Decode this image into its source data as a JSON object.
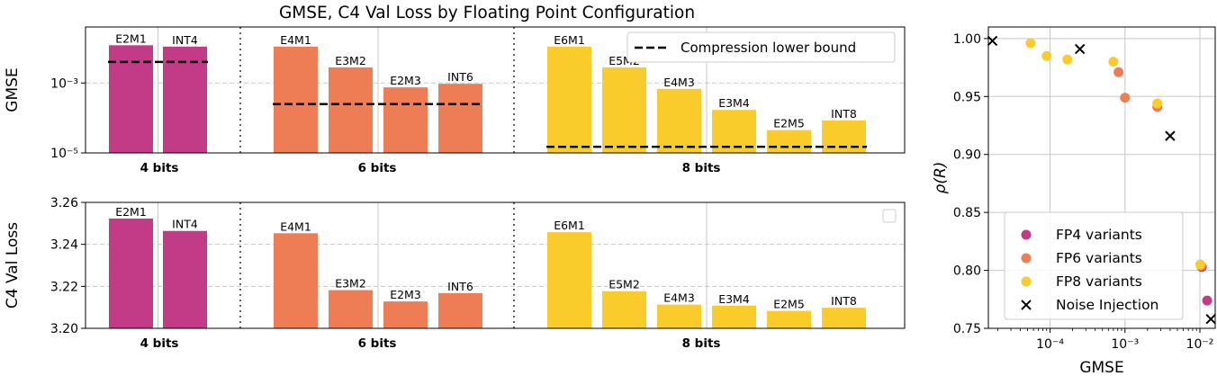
{
  "figure": {
    "title": "GMSE, C4 Val Loss by Floating Point Configuration"
  },
  "colors": {
    "fp4": "#c13b87",
    "fp6": "#ee7d55",
    "fp8": "#f9cb2b",
    "grid": "#c8c8c8",
    "dotted": "#666666"
  },
  "chart_data": [
    {
      "type": "bar",
      "panel": "gmse",
      "ylabel": "GMSE",
      "yscale": "log",
      "ylim": [
        1e-05,
        0.04
      ],
      "y_ticks": [
        {
          "value": 1e-05,
          "label": "10⁻⁵"
        },
        {
          "value": 0.001,
          "label": "10⁻³"
        }
      ],
      "groups": [
        {
          "label": "4 bits",
          "color_key": "fp4",
          "bound": 0.004,
          "bars": [
            {
              "name": "E2M1",
              "value": 0.012
            },
            {
              "name": "INT4",
              "value": 0.011
            }
          ]
        },
        {
          "label": "6 bits",
          "color_key": "fp6",
          "bound": 0.00025,
          "bars": [
            {
              "name": "E4M1",
              "value": 0.011
            },
            {
              "name": "E3M2",
              "value": 0.0028
            },
            {
              "name": "E2M3",
              "value": 0.00075
            },
            {
              "name": "INT6",
              "value": 0.00095
            }
          ]
        },
        {
          "label": "8 bits",
          "color_key": "fp8",
          "bound": 1.5e-05,
          "bars": [
            {
              "name": "E6M1",
              "value": 0.011
            },
            {
              "name": "E5M2",
              "value": 0.0028
            },
            {
              "name": "E4M3",
              "value": 0.00068
            },
            {
              "name": "E3M4",
              "value": 0.00017
            },
            {
              "name": "E2M5",
              "value": 4.5e-05
            },
            {
              "name": "INT8",
              "value": 8.5e-05
            }
          ]
        }
      ],
      "legend": {
        "label": "Compression lower bound",
        "position": "top-right"
      }
    },
    {
      "type": "bar",
      "panel": "loss",
      "ylabel": "C4 Val Loss",
      "ylim": [
        3.2,
        3.26
      ],
      "y_ticks": [
        {
          "value": 3.2,
          "label": "3.20"
        },
        {
          "value": 3.22,
          "label": "3.22"
        },
        {
          "value": 3.24,
          "label": "3.24"
        },
        {
          "value": 3.26,
          "label": "3.26"
        }
      ],
      "groups": [
        {
          "label": "4 bits",
          "color_key": "fp4",
          "bars": [
            {
              "name": "E2M1",
              "value": 3.2523
            },
            {
              "name": "INT4",
              "value": 3.2464
            }
          ]
        },
        {
          "label": "6 bits",
          "color_key": "fp6",
          "bars": [
            {
              "name": "E4M1",
              "value": 3.2453
            },
            {
              "name": "E3M2",
              "value": 3.2182
            },
            {
              "name": "E2M3",
              "value": 3.2128
            },
            {
              "name": "INT6",
              "value": 3.2168
            }
          ]
        },
        {
          "label": "8 bits",
          "color_key": "fp8",
          "bars": [
            {
              "name": "E6M1",
              "value": 3.2458
            },
            {
              "name": "E5M2",
              "value": 3.2177
            },
            {
              "name": "E4M3",
              "value": 3.2113
            },
            {
              "name": "E3M4",
              "value": 3.2108
            },
            {
              "name": "E2M5",
              "value": 3.2083
            },
            {
              "name": "INT8",
              "value": 3.2098
            }
          ]
        }
      ]
    },
    {
      "type": "scatter",
      "panel": "rho",
      "xlabel": "GMSE",
      "ylabel": "ρ(R)",
      "xscale": "log",
      "xlim": [
        1.5e-05,
        0.016
      ],
      "ylim": [
        0.75,
        1.01
      ],
      "x_ticks": [
        {
          "value": 0.0001,
          "label": "10⁻⁴"
        },
        {
          "value": 0.001,
          "label": "10⁻³"
        },
        {
          "value": 0.01,
          "label": "10⁻²"
        }
      ],
      "y_ticks": [
        {
          "value": 0.75,
          "label": "0.75"
        },
        {
          "value": 0.8,
          "label": "0.80"
        },
        {
          "value": 0.85,
          "label": "0.85"
        },
        {
          "value": 0.9,
          "label": "0.90"
        },
        {
          "value": 0.95,
          "label": "0.95"
        },
        {
          "value": 1.0,
          "label": "1.00"
        }
      ],
      "series": [
        {
          "name": "FP4 variants",
          "color_key": "fp4",
          "marker": "circle",
          "points": [
            [
              0.0106,
              0.803
            ],
            [
              0.0125,
              0.774
            ]
          ]
        },
        {
          "name": "FP6 variants",
          "color_key": "fp6",
          "marker": "circle",
          "points": [
            [
              0.00082,
              0.971
            ],
            [
              0.001,
              0.949
            ],
            [
              0.0027,
              0.941
            ],
            [
              0.0104,
              0.804
            ]
          ]
        },
        {
          "name": "FP8 variants",
          "color_key": "fp8",
          "marker": "circle",
          "points": [
            [
              5.5e-05,
              0.996
            ],
            [
              9e-05,
              0.985
            ],
            [
              0.00017,
              0.982
            ],
            [
              0.0007,
              0.98
            ],
            [
              0.0027,
              0.944
            ],
            [
              0.0101,
              0.805
            ]
          ]
        },
        {
          "name": "Noise Injection",
          "color": "#000000",
          "marker": "x",
          "points": [
            [
              1.7e-05,
              0.998
            ],
            [
              0.00025,
              0.991
            ],
            [
              0.004,
              0.916
            ],
            [
              0.014,
              0.758
            ]
          ]
        }
      ],
      "legend_position": "lower-left"
    }
  ]
}
